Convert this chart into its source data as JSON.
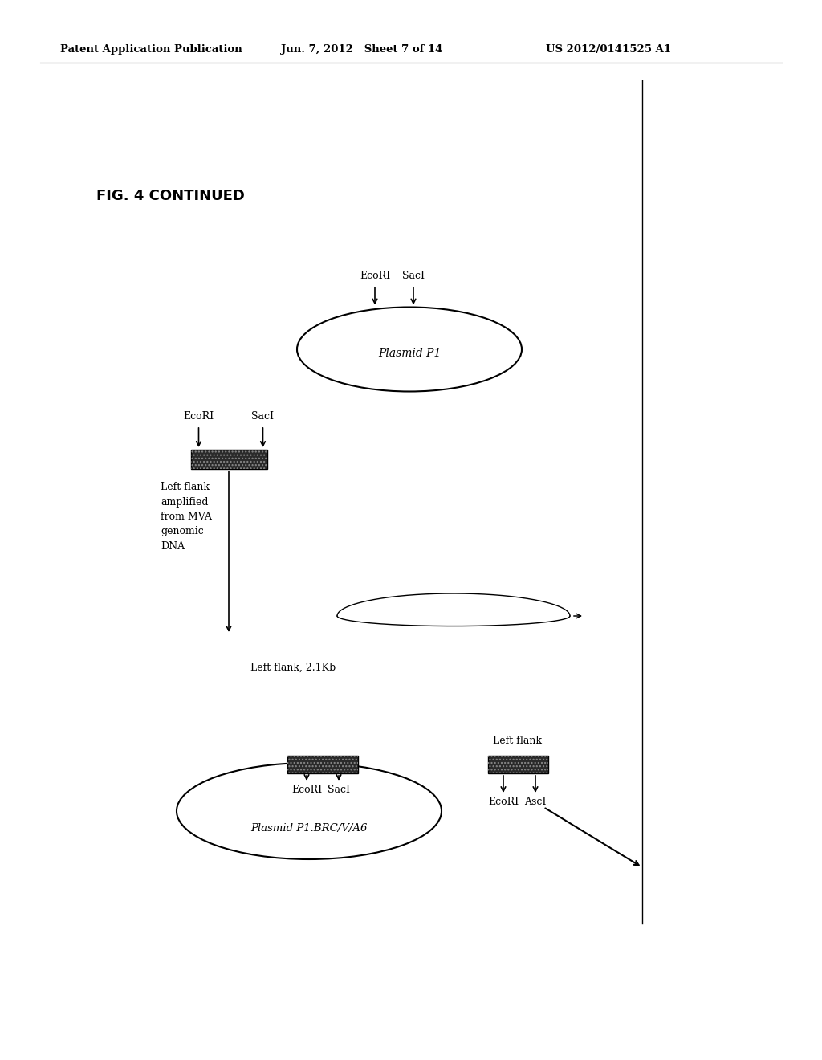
{
  "bg_color": "#ffffff",
  "header_left": "Patent Application Publication",
  "header_mid": "Jun. 7, 2012   Sheet 7 of 14",
  "header_right": "US 2012/0141525 A1",
  "fig_label": "FIG. 4 CONTINUED"
}
